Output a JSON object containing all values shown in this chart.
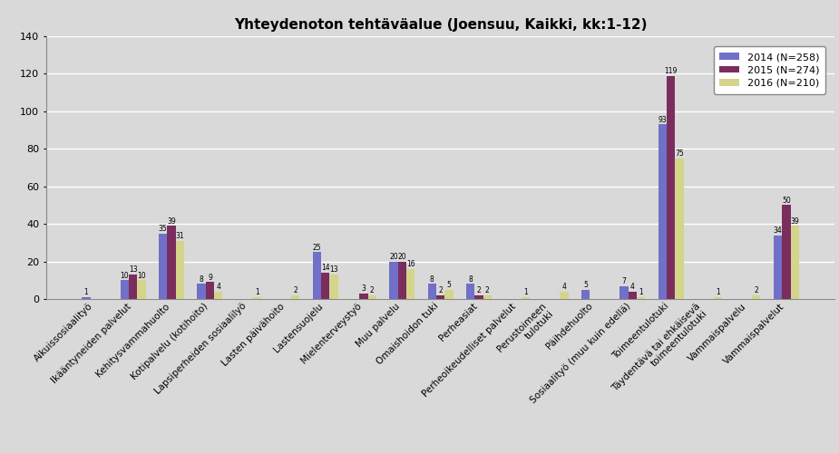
{
  "title": "Yhteydenoton tehtäväalue (Joensuu, Kaikki, kk:1-12)",
  "categories": [
    "Aikuissosiaalityö",
    "Ikääntyneiden palvelut",
    "Kehitysvammahuolto",
    "Kotipalvelu (kotihoito)",
    "Lapsiperheiden sosiaalilyö",
    "Lasten päivähoito",
    "Lastensuojelu",
    "Mielenterveystyö",
    "Muu palvelu",
    "Omaishoidon tuki",
    "Perheasiat",
    "Perheoikeudelliset palvelut",
    "Perustoimeen\ntulotuki",
    "Päihdehuolto",
    "Sosiaalityö (muu kuin edellä)",
    "Toimeentulotuki",
    "Täydentävä tai ehkäisevä\ntoimeentulotuki",
    "Vammaispalvelu",
    "Vammaispalvelut"
  ],
  "values_2014": [
    1,
    10,
    35,
    8,
    0,
    0,
    25,
    0,
    20,
    8,
    8,
    0,
    0,
    5,
    7,
    93,
    0,
    0,
    34
  ],
  "values_2015": [
    0,
    13,
    39,
    9,
    0,
    0,
    14,
    3,
    20,
    2,
    2,
    0,
    0,
    0,
    4,
    119,
    0,
    0,
    50
  ],
  "values_2016": [
    0,
    10,
    31,
    4,
    1,
    2,
    13,
    2,
    16,
    5,
    2,
    1,
    4,
    0,
    1,
    75,
    1,
    2,
    39
  ],
  "color_2014": "#7070c8",
  "color_2015": "#7b2d5e",
  "color_2016": "#d4d48a",
  "legend_labels": [
    "2014 (N=258)",
    "2015 (N=274)",
    "2016 (N=210)"
  ],
  "ylim": [
    0,
    140
  ],
  "yticks": [
    0,
    20,
    40,
    60,
    80,
    100,
    120,
    140
  ],
  "background_color": "#d9d9d9",
  "grid_color": "#ffffff",
  "title_fontsize": 11,
  "bar_width": 0.22,
  "label_fontsize": 5.5,
  "tick_fontsize": 7.5
}
